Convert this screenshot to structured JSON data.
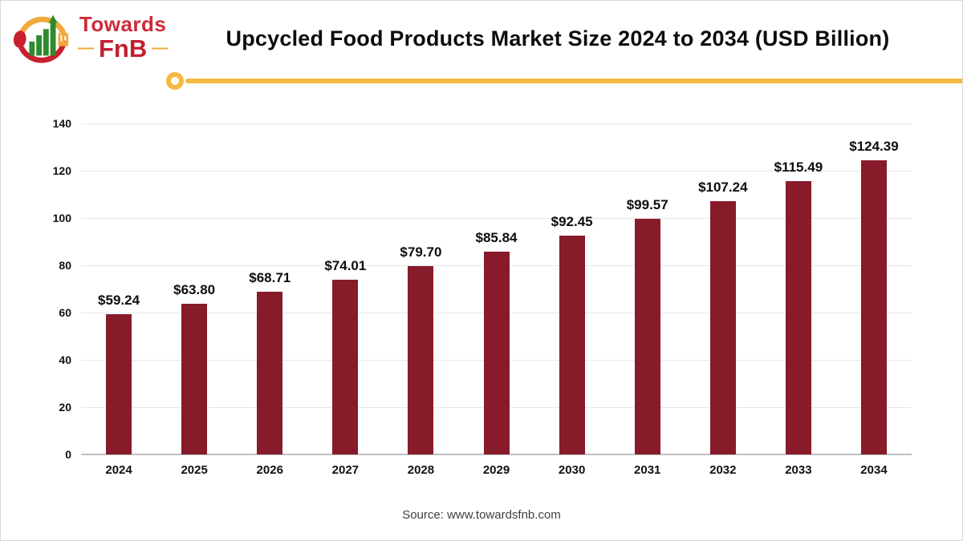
{
  "logo": {
    "line1": "Towards",
    "line2": "FnB",
    "dash": "—"
  },
  "header": {
    "title": "Upcycled Food Products Market Size 2024 to 2034 (USD Billion)"
  },
  "source": {
    "text": "Source: www.towardsfnb.com"
  },
  "colors": {
    "bar": "#871b2a",
    "accent_yellow": "#f5b942",
    "logo_red": "#ce2b37",
    "logo_green": "#2e8b2e",
    "gridline": "#e7e7e7",
    "axis": "#bfbfbf"
  },
  "chart_data": {
    "type": "bar",
    "title": "Upcycled Food Products Market Size 2024 to 2034 (USD Billion)",
    "unit": "USD Billion",
    "categories": [
      "2024",
      "2025",
      "2026",
      "2027",
      "2028",
      "2029",
      "2030",
      "2031",
      "2032",
      "2033",
      "2034"
    ],
    "values": [
      59.24,
      63.8,
      68.71,
      74.01,
      79.7,
      85.84,
      92.45,
      99.57,
      107.24,
      115.49,
      124.39
    ],
    "labels": [
      "$59.24",
      "$63.80",
      "$68.71",
      "$74.01",
      "$79.70",
      "$85.84",
      "$92.45",
      "$99.57",
      "$107.24",
      "$115.49",
      "$124.39"
    ],
    "xlabel": "",
    "ylabel": "",
    "ylim": [
      0,
      140
    ],
    "ytick_step": 20,
    "grid": true,
    "legend_position": "none",
    "bar_color": "#871b2a"
  }
}
